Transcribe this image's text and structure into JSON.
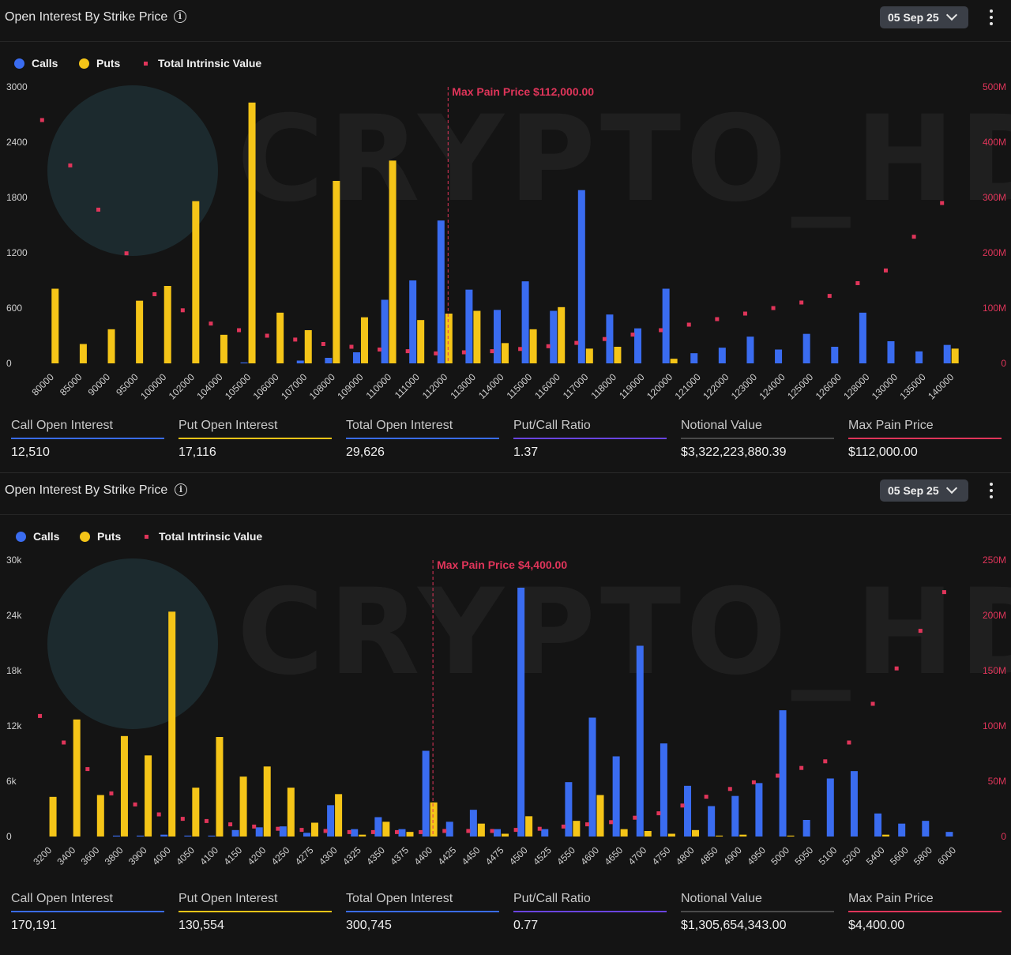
{
  "colors": {
    "calls": "#3a6cf0",
    "puts": "#f5c518",
    "intrinsic": "#e0355a"
  },
  "panels": [
    {
      "title": "Open Interest By Strike Price",
      "date": "05 Sep 25",
      "legend": {
        "calls": "Calls",
        "puts": "Puts",
        "intrinsic": "Total Intrinsic Value"
      },
      "watermark": "CRYPTO_HD",
      "stats": [
        {
          "label": "Call Open Interest",
          "value": "12,510",
          "color": "#3a6cf0"
        },
        {
          "label": "Put Open Interest",
          "value": "17,116",
          "color": "#f5c518"
        },
        {
          "label": "Total Open Interest",
          "value": "29,626",
          "color": "#3a6cf0"
        },
        {
          "label": "Put/Call Ratio",
          "value": "1.37",
          "color": "#6a44e0"
        },
        {
          "label": "Notional Value",
          "value": "$3,322,223,880.39",
          "color": "#4a4a4a"
        },
        {
          "label": "Max Pain Price",
          "value": "$112,000.00",
          "color": "#e0355a"
        }
      ],
      "chart_data": {
        "type": "bar",
        "categories": [
          "80000",
          "85000",
          "90000",
          "95000",
          "100000",
          "102000",
          "104000",
          "105000",
          "106000",
          "107000",
          "108000",
          "109000",
          "110000",
          "111000",
          "112000",
          "113000",
          "114000",
          "115000",
          "116000",
          "117000",
          "118000",
          "119000",
          "120000",
          "121000",
          "122000",
          "123000",
          "124000",
          "125000",
          "126000",
          "128000",
          "130000",
          "135000",
          "140000"
        ],
        "series": [
          {
            "name": "Calls",
            "values": [
              0,
              0,
              0,
              0,
              0,
              0,
              0,
              10,
              0,
              30,
              60,
              120,
              690,
              900,
              1550,
              800,
              580,
              890,
              570,
              1880,
              530,
              380,
              810,
              110,
              170,
              290,
              150,
              320,
              180,
              550,
              240,
              130,
              200
            ]
          },
          {
            "name": "Puts",
            "values": [
              810,
              210,
              370,
              680,
              840,
              1760,
              310,
              2830,
              550,
              360,
              1980,
              500,
              2200,
              470,
              540,
              570,
              220,
              370,
              610,
              160,
              180,
              0,
              50,
              0,
              0,
              0,
              0,
              0,
              0,
              0,
              0,
              0,
              160
            ]
          },
          {
            "name": "Total Intrinsic Value",
            "axis": "right",
            "values": [
              440,
              358,
              278,
              199,
              125,
              96,
              72,
              60,
              50,
              43,
              35,
              30,
              25,
              22,
              18,
              20,
              22,
              26,
              31,
              37,
              44,
              52,
              60,
              70,
              80,
              90,
              100,
              110,
              122,
              145,
              168,
              229,
              290
            ]
          }
        ],
        "ylim": [
          0,
          3000
        ],
        "yticks": [
          "0",
          "600",
          "1200",
          "1800",
          "2400",
          "3000"
        ],
        "y2lim": [
          0,
          500
        ],
        "y2ticks": [
          "0",
          "100M",
          "200M",
          "300M",
          "400M",
          "500M"
        ],
        "annotation": {
          "label": "Max Pain Price $112,000.00",
          "category": "112000"
        },
        "legend_position": "top-left",
        "grid": false
      }
    },
    {
      "title": "Open Interest By Strike Price",
      "date": "05 Sep 25",
      "legend": {
        "calls": "Calls",
        "puts": "Puts",
        "intrinsic": "Total Intrinsic Value"
      },
      "watermark": "CRYPTO_HD",
      "stats": [
        {
          "label": "Call Open Interest",
          "value": "170,191",
          "color": "#3a6cf0"
        },
        {
          "label": "Put Open Interest",
          "value": "130,554",
          "color": "#f5c518"
        },
        {
          "label": "Total Open Interest",
          "value": "300,745",
          "color": "#3a6cf0"
        },
        {
          "label": "Put/Call Ratio",
          "value": "0.77",
          "color": "#6a44e0"
        },
        {
          "label": "Notional Value",
          "value": "$1,305,654,343.00",
          "color": "#4a4a4a"
        },
        {
          "label": "Max Pain Price",
          "value": "$4,400.00",
          "color": "#e0355a"
        }
      ],
      "chart_data": {
        "type": "bar",
        "categories": [
          "3200",
          "3400",
          "3600",
          "3800",
          "3900",
          "4000",
          "4050",
          "4100",
          "4150",
          "4200",
          "4250",
          "4275",
          "4300",
          "4325",
          "4350",
          "4375",
          "4400",
          "4425",
          "4450",
          "4475",
          "4500",
          "4525",
          "4550",
          "4600",
          "4650",
          "4700",
          "4750",
          "4800",
          "4850",
          "4900",
          "4950",
          "5000",
          "5050",
          "5100",
          "5200",
          "5400",
          "5600",
          "5800",
          "6000"
        ],
        "series": [
          {
            "name": "Calls",
            "values": [
              0,
              0,
              0,
              100,
              100,
              200,
              100,
              100,
              700,
              1000,
              1100,
              400,
              3400,
              800,
              2100,
              800,
              9300,
              1600,
              2900,
              800,
              27000,
              800,
              5900,
              12900,
              8700,
              20700,
              10100,
              5500,
              3300,
              4400,
              5800,
              13700,
              1800,
              6300,
              7100,
              2500,
              1400,
              1700,
              500
            ]
          },
          {
            "name": "Puts",
            "values": [
              4300,
              12700,
              4500,
              10900,
              8800,
              24400,
              5300,
              10800,
              6500,
              7600,
              5300,
              1500,
              4600,
              200,
              1600,
              500,
              3700,
              0,
              1400,
              300,
              2200,
              0,
              1700,
              4500,
              800,
              600,
              300,
              700,
              100,
              200,
              0,
              100,
              0,
              0,
              0,
              200,
              0,
              0,
              0
            ]
          },
          {
            "name": "Total Intrinsic Value",
            "axis": "right",
            "values": [
              109,
              85,
              61,
              39,
              29,
              20,
              16,
              14,
              11,
              9,
              7,
              6,
              5,
              4,
              4,
              4,
              4,
              5,
              5,
              5,
              6,
              7,
              9,
              11,
              13,
              17,
              21,
              28,
              36,
              43,
              49,
              55,
              62,
              68,
              85,
              120,
              152,
              186,
              221
            ]
          }
        ],
        "ylim": [
          0,
          30000
        ],
        "yticks": [
          "0",
          "6k",
          "12k",
          "18k",
          "24k",
          "30k"
        ],
        "y2lim": [
          0,
          250
        ],
        "y2ticks": [
          "0",
          "50M",
          "100M",
          "150M",
          "200M",
          "250M"
        ],
        "annotation": {
          "label": "Max Pain Price $4,400.00",
          "category": "4400"
        },
        "legend_position": "top-left",
        "grid": false
      }
    }
  ]
}
